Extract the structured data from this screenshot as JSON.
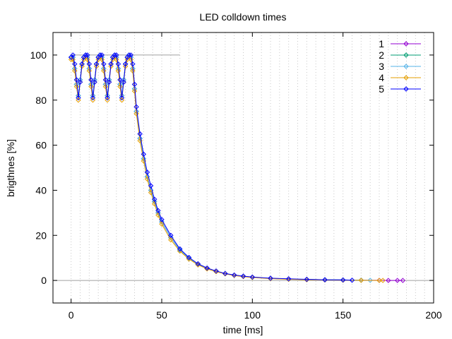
{
  "chart_data": {
    "type": "line",
    "title": "LED colldown times",
    "xlabel": "time [ms]",
    "ylabel": "brigthnes [%]",
    "xlim": [
      -10,
      200
    ],
    "ylim": [
      -10,
      110
    ],
    "xticks": [
      0,
      50,
      100,
      150,
      200
    ],
    "yticks": [
      0,
      20,
      40,
      60,
      80,
      100
    ],
    "x_tick_labels": [
      "0",
      "50",
      "100",
      "150",
      "200"
    ],
    "y_tick_labels": [
      "0",
      "20",
      "40",
      "60",
      "80",
      "100"
    ],
    "grid": "vertical dotted lines every 5 ms",
    "reference_lines": [
      {
        "y": 100,
        "x_range": [
          0,
          60
        ]
      },
      {
        "y": 0,
        "x_range": [
          -10,
          200
        ]
      }
    ],
    "legend_position": "top-right",
    "marker": "diamond",
    "series": [
      {
        "name": "1",
        "color": "#9400d3",
        "x": [
          0,
          1,
          2,
          3,
          4,
          5,
          6,
          7,
          8,
          9,
          10,
          11,
          12,
          13,
          14,
          15,
          16,
          17,
          18,
          19,
          20,
          21,
          22,
          23,
          24,
          25,
          26,
          27,
          28,
          29,
          30,
          31,
          32,
          33,
          34,
          35,
          36,
          38,
          40,
          42,
          44,
          46,
          48,
          50,
          55,
          60,
          65,
          70,
          75,
          80,
          85,
          90,
          95,
          100,
          110,
          120,
          130,
          140,
          150,
          160,
          170,
          175,
          180,
          183
        ],
        "y": [
          99,
          99,
          94,
          87,
          82,
          89,
          96,
          99,
          100,
          99,
          94,
          87,
          82,
          89,
          96,
          99,
          100,
          99,
          94,
          87,
          82,
          89,
          96,
          99,
          100,
          99,
          94,
          87,
          82,
          89,
          96,
          99,
          100,
          99,
          94,
          85,
          75,
          63,
          54,
          46,
          40,
          35,
          30,
          26,
          19,
          13.5,
          9.8,
          7.1,
          5.3,
          4.0,
          3.0,
          2.3,
          1.8,
          1.4,
          0.9,
          0.6,
          0.4,
          0.3,
          0.2,
          0.1,
          0.05,
          0,
          0,
          0
        ]
      },
      {
        "name": "2",
        "color": "#009e73",
        "x": [
          0,
          1,
          2,
          3,
          4,
          5,
          6,
          7,
          8,
          9,
          10,
          11,
          12,
          13,
          14,
          15,
          16,
          17,
          18,
          19,
          20,
          21,
          22,
          23,
          24,
          25,
          26,
          27,
          28,
          29,
          30,
          31,
          32,
          33,
          34,
          35,
          36,
          38,
          40,
          42,
          44,
          46,
          48,
          50,
          55,
          60,
          65,
          70,
          75,
          80,
          85,
          90,
          95,
          100,
          110,
          120,
          130,
          140,
          150,
          160
        ],
        "y": [
          99,
          99,
          94,
          87,
          82,
          89,
          96,
          99,
          100,
          99,
          94,
          87,
          82,
          89,
          96,
          99,
          100,
          99,
          94,
          87,
          82,
          89,
          96,
          99,
          100,
          99,
          94,
          87,
          82,
          89,
          96,
          99,
          100,
          99,
          94,
          85,
          75,
          63,
          54,
          46,
          40,
          35,
          30,
          26,
          19,
          13.5,
          9.8,
          7.1,
          5.3,
          4.0,
          3.0,
          2.3,
          1.8,
          1.4,
          0.9,
          0.6,
          0.4,
          0.3,
          0.2,
          0.1
        ]
      },
      {
        "name": "3",
        "color": "#56b4e9",
        "x": [
          0,
          1,
          2,
          3,
          4,
          5,
          6,
          7,
          8,
          9,
          10,
          11,
          12,
          13,
          14,
          15,
          16,
          17,
          18,
          19,
          20,
          21,
          22,
          23,
          24,
          25,
          26,
          27,
          28,
          29,
          30,
          31,
          32,
          33,
          34,
          35,
          36,
          38,
          40,
          42,
          44,
          46,
          48,
          50,
          55,
          60,
          65,
          70,
          75,
          80,
          85,
          90,
          95,
          100,
          110,
          120,
          130,
          140,
          150,
          160,
          165
        ],
        "y": [
          99,
          99,
          94,
          87,
          82,
          89,
          96,
          99,
          100,
          99,
          94,
          87,
          82,
          89,
          96,
          99,
          100,
          99,
          94,
          87,
          82,
          89,
          96,
          99,
          100,
          99,
          94,
          87,
          82,
          89,
          96,
          99,
          100,
          99,
          94,
          85,
          75,
          63,
          54,
          46,
          40,
          35,
          30,
          26,
          19,
          13.5,
          9.8,
          7.1,
          5.3,
          4.0,
          3.0,
          2.3,
          1.8,
          1.4,
          0.9,
          0.6,
          0.4,
          0.3,
          0.2,
          0.1,
          0.05
        ]
      },
      {
        "name": "4",
        "color": "#e69f00",
        "x": [
          0,
          1,
          2,
          3,
          4,
          5,
          6,
          7,
          8,
          9,
          10,
          11,
          12,
          13,
          14,
          15,
          16,
          17,
          18,
          19,
          20,
          21,
          22,
          23,
          24,
          25,
          26,
          27,
          28,
          29,
          30,
          31,
          32,
          33,
          34,
          35,
          36,
          38,
          40,
          42,
          44,
          46,
          48,
          50,
          55,
          60,
          65,
          70,
          75,
          80,
          85,
          90,
          95,
          100,
          110,
          120,
          130,
          140,
          150,
          160,
          170,
          172
        ],
        "y": [
          98,
          98,
          93,
          86,
          80,
          88,
          95,
          98,
          99,
          98,
          93,
          86,
          80,
          88,
          95,
          98,
          99,
          98,
          93,
          86,
          80,
          88,
          95,
          98,
          99,
          98,
          93,
          86,
          80,
          88,
          95,
          98,
          99,
          98,
          93,
          84,
          74,
          62,
          53,
          45,
          39,
          34,
          29,
          25,
          18,
          13,
          9.5,
          6.9,
          5.1,
          3.9,
          2.9,
          2.2,
          1.7,
          1.3,
          0.8,
          0.5,
          0.3,
          0.2,
          0.1,
          0.05,
          0,
          0
        ]
      },
      {
        "name": "5",
        "color": "#0000ff",
        "x": [
          0,
          1,
          2,
          3,
          4,
          5,
          6,
          7,
          8,
          9,
          10,
          11,
          12,
          13,
          14,
          15,
          16,
          17,
          18,
          19,
          20,
          21,
          22,
          23,
          24,
          25,
          26,
          27,
          28,
          29,
          30,
          31,
          32,
          33,
          34,
          35,
          36,
          38,
          40,
          42,
          44,
          46,
          48,
          50,
          55,
          60,
          65,
          70,
          75,
          80,
          85,
          90,
          95,
          100,
          110,
          120,
          130,
          140,
          150,
          155
        ],
        "y": [
          99,
          100,
          96,
          89,
          81,
          88,
          96,
          99,
          100,
          100,
          96,
          89,
          81,
          88,
          96,
          99,
          100,
          100,
          96,
          89,
          81,
          88,
          96,
          99,
          100,
          100,
          96,
          89,
          81,
          88,
          96,
          99,
          100,
          100,
          96,
          87,
          77,
          65,
          56,
          48,
          42,
          36,
          31,
          27,
          20,
          14,
          10.2,
          7.4,
          5.5,
          4.2,
          3.1,
          2.4,
          1.9,
          1.5,
          1.0,
          0.7,
          0.5,
          0.3,
          0.2,
          0.1
        ]
      }
    ]
  }
}
